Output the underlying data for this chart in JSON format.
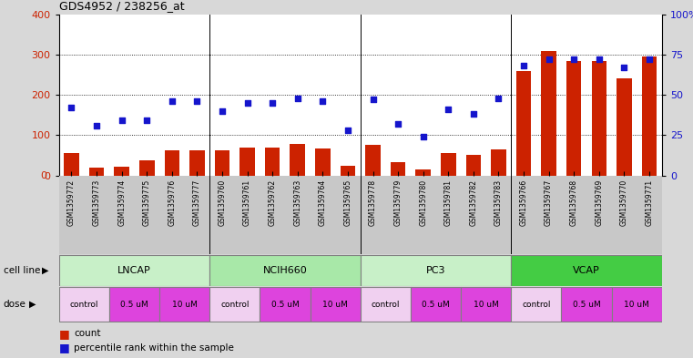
{
  "title": "GDS4952 / 238256_at",
  "samples": [
    "GSM1359772",
    "GSM1359773",
    "GSM1359774",
    "GSM1359775",
    "GSM1359776",
    "GSM1359777",
    "GSM1359760",
    "GSM1359761",
    "GSM1359762",
    "GSM1359763",
    "GSM1359764",
    "GSM1359765",
    "GSM1359778",
    "GSM1359779",
    "GSM1359780",
    "GSM1359781",
    "GSM1359782",
    "GSM1359783",
    "GSM1359766",
    "GSM1359767",
    "GSM1359768",
    "GSM1359769",
    "GSM1359770",
    "GSM1359771"
  ],
  "counts": [
    55,
    20,
    22,
    38,
    62,
    63,
    62,
    70,
    70,
    78,
    68,
    25,
    75,
    33,
    14,
    55,
    50,
    65,
    260,
    310,
    285,
    285,
    240,
    295
  ],
  "percentiles": [
    42,
    31,
    34,
    34,
    46,
    46,
    40,
    45,
    45,
    48,
    46,
    28,
    47,
    32,
    24,
    41,
    38,
    48,
    68,
    72,
    72,
    72,
    67,
    72
  ],
  "bar_color": "#cc2200",
  "dot_color": "#1515cc",
  "ylim_left": [
    0,
    400
  ],
  "ylim_right": [
    0,
    100
  ],
  "yticks_left": [
    0,
    100,
    200,
    300,
    400
  ],
  "yticks_right": [
    0,
    25,
    50,
    75,
    100
  ],
  "ytick_labels_right": [
    "0",
    "25",
    "50",
    "75",
    "100%"
  ],
  "bg_color": "#d8d8d8",
  "plot_bg": "#ffffff",
  "label_band_color": "#c8c8c8",
  "cell_line_groups": [
    {
      "name": "LNCAP",
      "start": 0,
      "end": 6,
      "color": "#c8f0c8"
    },
    {
      "name": "NCIH660",
      "start": 6,
      "end": 12,
      "color": "#a8e8a8"
    },
    {
      "name": "PC3",
      "start": 12,
      "end": 18,
      "color": "#c8f0c8"
    },
    {
      "name": "VCAP",
      "start": 18,
      "end": 24,
      "color": "#44cc44"
    }
  ],
  "dose_groups": [
    {
      "label": "control",
      "start": 0,
      "end": 2,
      "color": "#f0d0f0"
    },
    {
      "label": "0.5 uM",
      "start": 2,
      "end": 4,
      "color": "#dd44dd"
    },
    {
      "label": "10 uM",
      "start": 4,
      "end": 6,
      "color": "#dd44dd"
    },
    {
      "label": "control",
      "start": 6,
      "end": 8,
      "color": "#f0d0f0"
    },
    {
      "label": "0.5 uM",
      "start": 8,
      "end": 10,
      "color": "#dd44dd"
    },
    {
      "label": "10 uM",
      "start": 10,
      "end": 12,
      "color": "#dd44dd"
    },
    {
      "label": "control",
      "start": 12,
      "end": 14,
      "color": "#f0d0f0"
    },
    {
      "label": "0.5 uM",
      "start": 14,
      "end": 16,
      "color": "#dd44dd"
    },
    {
      "label": "10 uM",
      "start": 16,
      "end": 18,
      "color": "#dd44dd"
    },
    {
      "label": "control",
      "start": 18,
      "end": 20,
      "color": "#f0d0f0"
    },
    {
      "label": "0.5 uM",
      "start": 20,
      "end": 22,
      "color": "#dd44dd"
    },
    {
      "label": "10 uM",
      "start": 22,
      "end": 24,
      "color": "#dd44dd"
    }
  ]
}
